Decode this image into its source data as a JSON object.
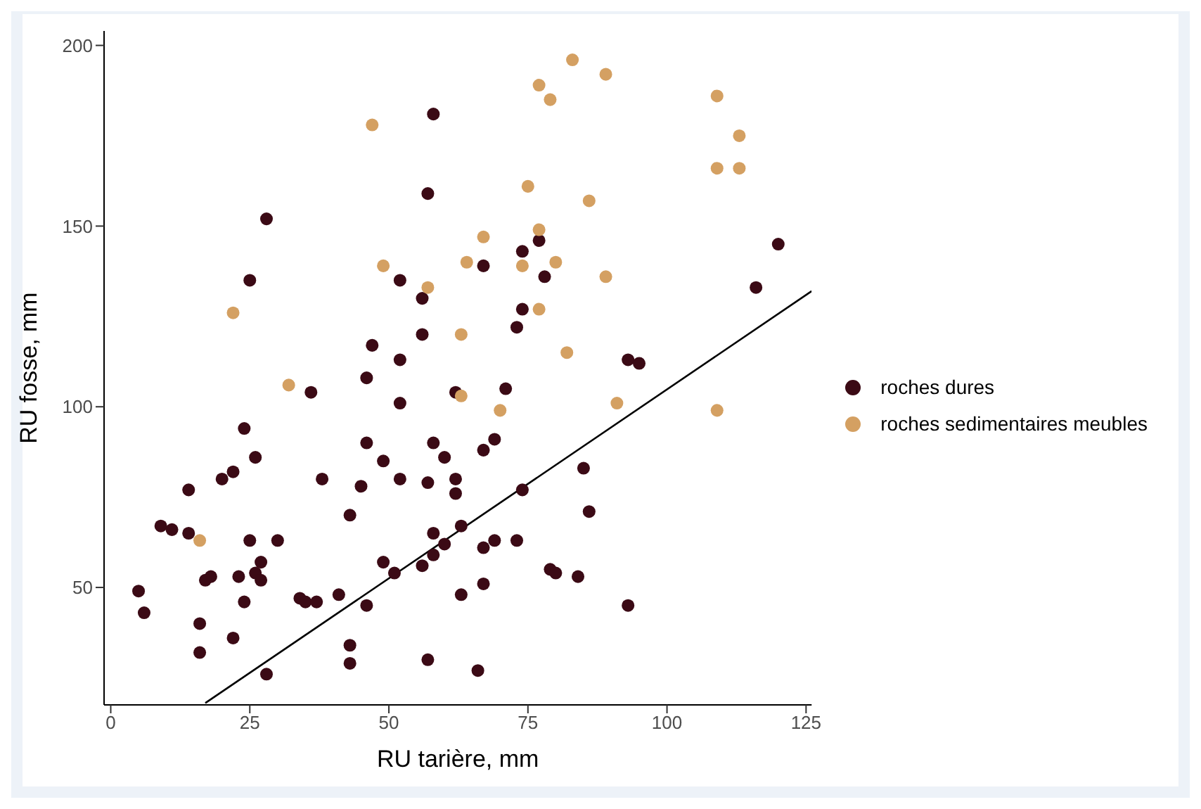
{
  "chart_data": {
    "type": "scatter",
    "xlabel": "RU tarière, mm",
    "ylabel": "RU fosse, mm",
    "xlim": [
      -1.2,
      126
    ],
    "ylim": [
      17.5,
      204
    ],
    "xticks": [
      0,
      25,
      50,
      75,
      100,
      125
    ],
    "yticks": [
      50,
      100,
      150,
      200
    ],
    "grid": false,
    "legend": "right",
    "marker": "circle",
    "series": [
      {
        "name": "roches dures",
        "color": "#3b0a15",
        "x": [
          36,
          46,
          52,
          24,
          26,
          14,
          20,
          22,
          38,
          45,
          46,
          49,
          52,
          58,
          60,
          57,
          62,
          62,
          43,
          9,
          11,
          14,
          25,
          30,
          27,
          26,
          27,
          18,
          17,
          23,
          24,
          5,
          6,
          16,
          16,
          22,
          28,
          34,
          35,
          37,
          41,
          46,
          49,
          51,
          43,
          43,
          57,
          56,
          58,
          60,
          58,
          63,
          63,
          62,
          71,
          93,
          95,
          69,
          67,
          85,
          86,
          74,
          67,
          69,
          73,
          67,
          79,
          80,
          84,
          93,
          66,
          77,
          74,
          67,
          78,
          74,
          73,
          120,
          116,
          58,
          57,
          28,
          25,
          52,
          56,
          56,
          47,
          52
        ],
        "values": [
          104,
          108,
          101,
          94,
          86,
          77,
          80,
          82,
          80,
          78,
          90,
          85,
          80,
          90,
          86,
          79,
          80,
          76,
          70,
          67,
          66,
          65,
          63,
          63,
          57,
          54,
          52,
          53,
          52,
          53,
          46,
          49,
          43,
          40,
          32,
          36,
          26,
          47,
          46,
          46,
          48,
          45,
          57,
          54,
          34,
          29,
          30,
          56,
          59,
          62,
          65,
          67,
          48,
          104,
          105,
          113,
          112,
          91,
          88,
          83,
          71,
          77,
          61,
          63,
          63,
          51,
          55,
          54,
          53,
          45,
          27,
          146,
          143,
          139,
          136,
          127,
          122,
          145,
          133,
          181,
          159,
          152,
          135,
          135,
          130,
          120,
          117,
          113
        ]
      },
      {
        "name": "roches sedimentaires meubles",
        "color": "#d4a062",
        "x": [
          32,
          16,
          63,
          70,
          91,
          109,
          83,
          89,
          77,
          79,
          109,
          113,
          109,
          113,
          75,
          86,
          77,
          67,
          64,
          74,
          80,
          89,
          77,
          63,
          82,
          47,
          49,
          57,
          22
        ],
        "values": [
          106,
          63,
          103,
          99,
          101,
          99,
          196,
          192,
          189,
          185,
          186,
          175,
          166,
          166,
          161,
          157,
          149,
          147,
          140,
          139,
          140,
          136,
          127,
          120,
          115,
          178,
          139,
          133,
          126
        ]
      },
      {
        "type": "line",
        "marker": "none",
        "color": "#000000",
        "x": [
          17,
          126
        ],
        "values": [
          18,
          132
        ]
      }
    ]
  }
}
